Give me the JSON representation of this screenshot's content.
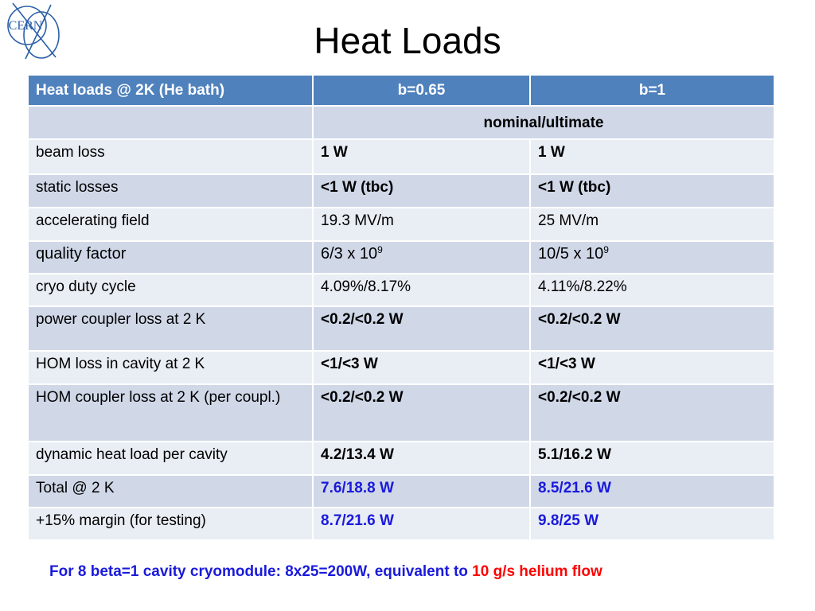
{
  "logo": {
    "text": "CERN",
    "color": "#2b5fa8"
  },
  "title": "Heat Loads",
  "table": {
    "headers": [
      "Heat loads @ 2K (He bath)",
      "b=0.65",
      "b=1"
    ],
    "subheader": "nominal/ultimate",
    "rows": [
      {
        "label": "beam loss",
        "v1": "1 W",
        "v2": "1 W"
      },
      {
        "label": "static losses",
        "v1": "<1 W (tbc)",
        "v2": "<1 W (tbc)"
      },
      {
        "label": "accelerating field",
        "v1": "19.3 MV/m",
        "v2": "25 MV/m"
      },
      {
        "label": "quality factor",
        "v1_base": "6/3 x 10",
        "v1_exp": "9",
        "v2_base": "10/5 x 10",
        "v2_exp": "9"
      },
      {
        "label": "cryo duty cycle",
        "v1": "4.09%/8.17%",
        "v2": "4.11%/8.22%"
      },
      {
        "label": "power coupler loss at 2 K",
        "v1": "<0.2/<0.2 W",
        "v2": "<0.2/<0.2 W"
      },
      {
        "label": "HOM loss in cavity at 2 K",
        "v1": "<1/<3 W",
        "v2": "<1/<3 W"
      },
      {
        "label": "HOM coupler loss at 2 K (per coupl.)",
        "v1": "<0.2/<0.2 W",
        "v2": "<0.2/<0.2 W"
      },
      {
        "label": "dynamic heat load per cavity",
        "v1": "4.2/13.4 W",
        "v2": "5.1/16.2 W"
      },
      {
        "label": "Total @ 2 K",
        "v1": "7.6/18.8 W",
        "v2": "8.5/21.6 W"
      },
      {
        "label": "+15% margin (for testing)",
        "v1": "8.7/21.6 W",
        "v2": "9.8/25 W"
      }
    ]
  },
  "footer": {
    "part1": "For 8 beta=1 cavity cryomodule: 8x25=200W, equivalent to ",
    "part2": "10 g/s helium flow"
  },
  "colors": {
    "header_bg": "#4f81bd",
    "row_dark": "#d0d8e8",
    "row_light": "#e9edf4",
    "highlight_blue": "#1a1adc",
    "highlight_red": "#ff0000"
  }
}
